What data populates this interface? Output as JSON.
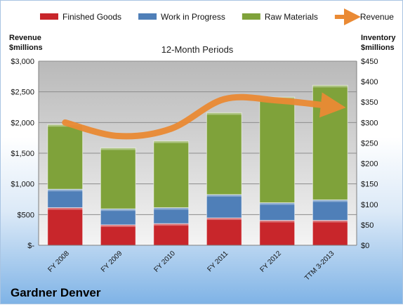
{
  "company": "Gardner Denver",
  "chart_data": {
    "type": "bar",
    "stacked": true,
    "title": "12-Month Periods",
    "categories": [
      "FY 2008",
      "FY 2009",
      "FY 2010",
      "FY 2011",
      "FY 2012",
      "TTM 3-2013"
    ],
    "series": [
      {
        "name": "Finished Goods",
        "color": "#c8262b",
        "values": [
          92,
          50,
          53,
          67,
          61,
          61
        ]
      },
      {
        "name": "Work in Progress",
        "color": "#4f7fb8",
        "values": [
          45,
          39,
          39,
          57,
          43,
          50
        ]
      },
      {
        "name": "Raw Materials",
        "color": "#7fa23a",
        "values": [
          158,
          149,
          163,
          200,
          258,
          280
        ]
      }
    ],
    "line_series": {
      "name": "Revenue",
      "color": "#ea8a34",
      "values": [
        2000,
        1780,
        1900,
        2380,
        2360,
        2270
      ]
    },
    "y_left": {
      "label_line1": "Revenue",
      "label_line2": "$millions",
      "min": 0,
      "max": 3000,
      "ticks": [
        "$-",
        "$500",
        "$1,000",
        "$1,500",
        "$2,000",
        "$2,500",
        "$3,000"
      ]
    },
    "y_right": {
      "label_line1": "Inventory",
      "label_line2": "$millions",
      "min": 0,
      "max": 450,
      "ticks": [
        "$0",
        "$50",
        "$100",
        "$150",
        "$200",
        "$250",
        "$300",
        "$350",
        "$400",
        "$450"
      ]
    },
    "legend_position": "top",
    "grid": true
  }
}
